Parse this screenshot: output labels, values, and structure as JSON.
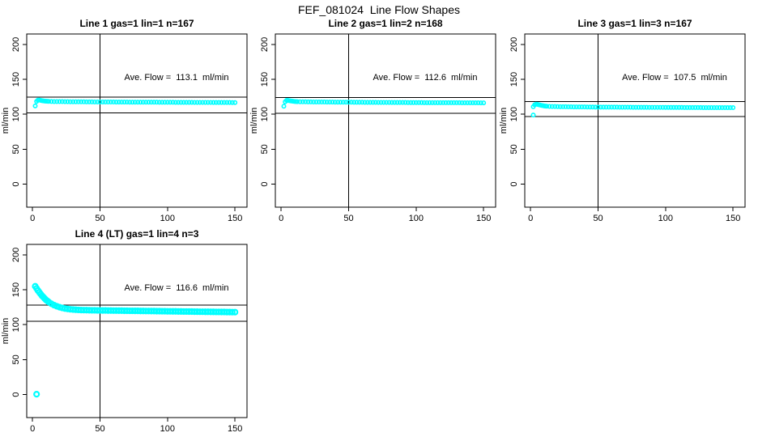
{
  "header": {
    "title": "FEF_081024  Line Flow Shapes"
  },
  "chart_data": {
    "type": "scatter",
    "layout": {
      "rows": 2,
      "cols": 3,
      "used_panels": 4,
      "xlim": [
        -4.3,
        158.9
      ],
      "ylim": [
        -33,
        215
      ],
      "xticks": [
        0,
        50,
        100,
        150
      ],
      "yticks": [
        0,
        50,
        100,
        150,
        200
      ],
      "xlabel": "",
      "ylabel": "ml/min",
      "vline_x": 50,
      "grid": false,
      "legend": "none",
      "point_color": "#00FFFF",
      "line_color": "#000000",
      "background": "#FFFFFF"
    },
    "panels": [
      {
        "title": "Line 1 gas=1 lin=1 n=167",
        "ave_flow_text": "Ave. Flow =  113.1  ml/min",
        "ave_flow": 113.1,
        "n": 167,
        "ref_upper": 124.4,
        "ref_lower": 101.8,
        "marker_r": 2.2,
        "marker_w": 1.6,
        "x": [
          2,
          3,
          4,
          5,
          6,
          7,
          8,
          9,
          10,
          11,
          12,
          14,
          16,
          18,
          20,
          22,
          24,
          26,
          28,
          30,
          32,
          34,
          36,
          38,
          40,
          42,
          44,
          46,
          48,
          50,
          52,
          54,
          56,
          58,
          60,
          62,
          64,
          66,
          68,
          70,
          72,
          74,
          76,
          78,
          80,
          82,
          84,
          86,
          88,
          90,
          92,
          94,
          96,
          98,
          100,
          102,
          104,
          106,
          108,
          110,
          112,
          114,
          116,
          118,
          120,
          122,
          124,
          126,
          128,
          130,
          132,
          134,
          136,
          138,
          140,
          142,
          144,
          146,
          148,
          150
        ],
        "y": [
          112.0,
          118.5,
          120.3,
          120.4,
          120.0,
          119.6,
          119.3,
          119.0,
          118.8,
          118.6,
          118.5,
          118.4,
          118.3,
          118.3,
          118.2,
          118.2,
          118.1,
          118.1,
          118.0,
          118.0,
          118.0,
          117.9,
          117.9,
          117.9,
          117.8,
          117.8,
          117.8,
          117.7,
          117.7,
          117.7,
          117.7,
          117.6,
          117.6,
          117.6,
          117.6,
          117.5,
          117.5,
          117.5,
          117.5,
          117.5,
          117.4,
          117.4,
          117.4,
          117.4,
          117.4,
          117.3,
          117.3,
          117.3,
          117.3,
          117.3,
          117.3,
          117.2,
          117.2,
          117.2,
          117.2,
          117.2,
          117.2,
          117.1,
          117.1,
          117.1,
          117.1,
          117.1,
          117.1,
          117.1,
          117.0,
          117.0,
          117.0,
          117.0,
          117.0,
          117.0,
          117.0,
          116.9,
          116.9,
          116.9,
          116.9,
          116.9,
          116.9,
          116.9,
          116.8,
          116.8
        ]
      },
      {
        "title": "Line 2 gas=1 lin=2 n=168",
        "ave_flow_text": "Ave. Flow =  112.6  ml/min",
        "ave_flow": 112.6,
        "n": 168,
        "ref_upper": 123.9,
        "ref_lower": 101.3,
        "marker_r": 2.2,
        "marker_w": 1.6,
        "x": [
          2,
          3,
          4,
          5,
          6,
          7,
          8,
          9,
          10,
          11,
          12,
          14,
          16,
          18,
          20,
          22,
          24,
          26,
          28,
          30,
          32,
          34,
          36,
          38,
          40,
          42,
          44,
          46,
          48,
          50,
          52,
          54,
          56,
          58,
          60,
          62,
          64,
          66,
          68,
          70,
          72,
          74,
          76,
          78,
          80,
          82,
          84,
          86,
          88,
          90,
          92,
          94,
          96,
          98,
          100,
          102,
          104,
          106,
          108,
          110,
          112,
          114,
          116,
          118,
          120,
          122,
          124,
          126,
          128,
          130,
          132,
          134,
          136,
          138,
          140,
          142,
          144,
          146,
          148,
          150
        ],
        "y": [
          111.5,
          118.0,
          119.9,
          120.0,
          119.6,
          119.2,
          118.9,
          118.6,
          118.4,
          118.2,
          118.1,
          118.0,
          117.9,
          117.9,
          117.8,
          117.8,
          117.7,
          117.7,
          117.6,
          117.6,
          117.6,
          117.5,
          117.5,
          117.5,
          117.4,
          117.4,
          117.4,
          117.3,
          117.3,
          117.3,
          117.3,
          117.2,
          117.2,
          117.2,
          117.2,
          117.1,
          117.1,
          117.1,
          117.1,
          117.1,
          117.0,
          117.0,
          117.0,
          117.0,
          117.0,
          116.9,
          116.9,
          116.9,
          116.9,
          116.9,
          116.9,
          116.8,
          116.8,
          116.8,
          116.8,
          116.8,
          116.8,
          116.7,
          116.7,
          116.7,
          116.7,
          116.7,
          116.7,
          116.7,
          116.6,
          116.6,
          116.6,
          116.6,
          116.6,
          116.6,
          116.6,
          116.5,
          116.5,
          116.5,
          116.5,
          116.5,
          116.5,
          116.5,
          116.4,
          116.4
        ]
      },
      {
        "title": "Line 3 gas=1 lin=3 n=167",
        "ave_flow_text": "Ave. Flow =  107.5  ml/min",
        "ave_flow": 107.5,
        "n": 167,
        "ref_upper": 118.3,
        "ref_lower": 96.8,
        "marker_r": 2.2,
        "marker_w": 1.6,
        "x": [
          2,
          2,
          3,
          4,
          5,
          6,
          7,
          8,
          9,
          10,
          11,
          12,
          14,
          16,
          18,
          20,
          22,
          24,
          26,
          28,
          30,
          32,
          34,
          36,
          38,
          40,
          42,
          44,
          46,
          48,
          50,
          52,
          54,
          56,
          58,
          60,
          62,
          64,
          66,
          68,
          70,
          72,
          74,
          76,
          78,
          80,
          82,
          84,
          86,
          88,
          90,
          92,
          94,
          96,
          98,
          100,
          102,
          104,
          106,
          108,
          110,
          112,
          114,
          116,
          118,
          120,
          122,
          124,
          126,
          128,
          130,
          132,
          134,
          136,
          138,
          140,
          142,
          144,
          146,
          148,
          150
        ],
        "y": [
          99.0,
          110.8,
          113.6,
          114.5,
          114.3,
          113.8,
          113.3,
          112.8,
          112.4,
          112.0,
          111.7,
          111.5,
          111.3,
          111.2,
          111.1,
          111.0,
          110.9,
          110.8,
          110.8,
          110.7,
          110.7,
          110.6,
          110.6,
          110.5,
          110.5,
          110.5,
          110.4,
          110.4,
          110.4,
          110.3,
          110.3,
          110.3,
          110.3,
          110.2,
          110.2,
          110.2,
          110.2,
          110.2,
          110.1,
          110.1,
          110.1,
          110.1,
          110.1,
          110.0,
          110.0,
          110.0,
          110.0,
          110.0,
          110.0,
          109.9,
          109.9,
          109.9,
          109.9,
          109.9,
          109.9,
          109.8,
          109.8,
          109.8,
          109.8,
          109.8,
          109.8,
          109.8,
          109.7,
          109.7,
          109.7,
          109.7,
          109.7,
          109.7,
          109.7,
          109.6,
          109.6,
          109.6,
          109.6,
          109.6,
          109.6,
          109.6,
          109.5,
          109.5,
          109.5,
          109.5,
          109.5
        ]
      },
      {
        "title": "Line 4 (LT) gas=1 lin=4 n=3",
        "ave_flow_text": "Ave. Flow =  116.6  ml/min",
        "ave_flow": 116.6,
        "n": 3,
        "ref_upper": 128.3,
        "ref_lower": 104.9,
        "marker_r": 3.0,
        "marker_w": 2.2,
        "x": [
          3,
          2,
          3,
          4,
          5,
          6,
          7,
          8,
          9,
          10,
          11,
          12,
          14,
          16,
          18,
          20,
          22,
          24,
          26,
          28,
          30,
          32,
          34,
          36,
          38,
          40,
          42,
          44,
          46,
          48,
          50,
          52,
          54,
          56,
          58,
          60,
          62,
          64,
          66,
          68,
          70,
          72,
          74,
          76,
          78,
          80,
          82,
          84,
          86,
          88,
          90,
          92,
          94,
          96,
          98,
          100,
          102,
          104,
          106,
          108,
          110,
          112,
          114,
          116,
          118,
          120,
          122,
          124,
          126,
          128,
          130,
          132,
          134,
          136,
          138,
          140,
          142,
          144,
          146,
          148,
          150
        ],
        "y": [
          0.5,
          155.0,
          152.0,
          149.0,
          146.5,
          144.0,
          141.5,
          139.5,
          137.5,
          135.5,
          134.0,
          132.5,
          130.0,
          128.0,
          126.4,
          125.0,
          124.0,
          123.2,
          122.6,
          122.1,
          121.7,
          121.4,
          121.2,
          121.0,
          120.9,
          120.8,
          120.7,
          120.6,
          120.6,
          120.5,
          120.5,
          120.4,
          120.4,
          120.3,
          120.3,
          120.2,
          120.2,
          120.1,
          120.1,
          120.0,
          120.0,
          119.9,
          119.9,
          119.8,
          119.8,
          119.7,
          119.7,
          119.6,
          119.6,
          119.5,
          119.5,
          119.4,
          119.4,
          119.3,
          119.3,
          119.2,
          119.2,
          119.1,
          119.1,
          119.0,
          119.0,
          118.9,
          118.9,
          118.8,
          118.8,
          118.7,
          118.7,
          118.6,
          118.6,
          118.5,
          118.5,
          118.4,
          118.4,
          118.3,
          118.3,
          118.2,
          118.2,
          118.1,
          118.1,
          118.0,
          118.0
        ]
      }
    ]
  }
}
